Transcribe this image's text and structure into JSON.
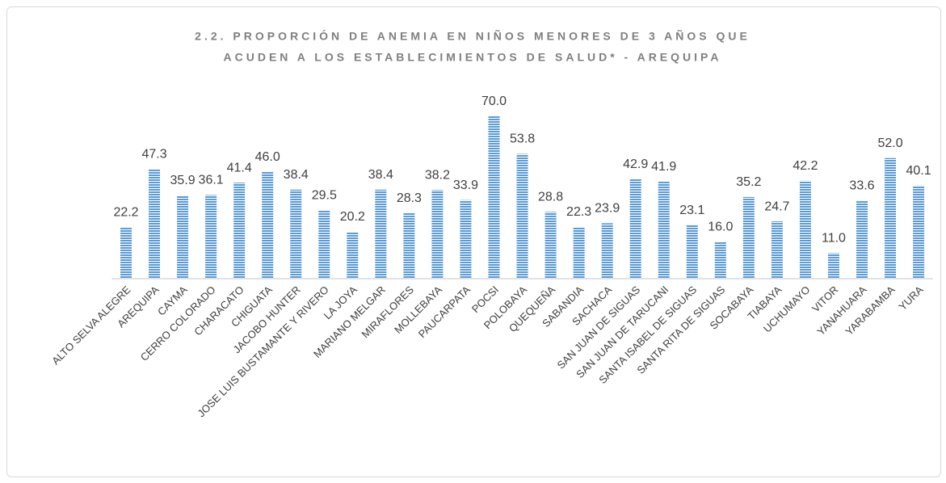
{
  "chart_data": {
    "type": "bar",
    "title": [
      "2.2.  PROPORCIÓN DE ANEMIA EN NIÑOS MENORES DE 3 AÑOS QUE",
      "ACUDEN A LOS ESTABLECIMIENTOS DE SALUD* - AREQUIPA"
    ],
    "categories": [
      "ALTO SELVA ALEGRE",
      "AREQUIPA",
      "CAYMA",
      "CERRO COLORADO",
      "CHARACATO",
      "CHIGUATA",
      "JACOBO HUNTER",
      "JOSE LUIS BUSTAMANTE Y RIVERO",
      "LA JOYA",
      "MARIANO MELGAR",
      "MIRAFLORES",
      "MOLLEBAYA",
      "PAUCARPATA",
      "POCSI",
      "POLOBAYA",
      "QUEQUEÑA",
      "SABANDIA",
      "SACHACA",
      "SAN JUAN DE SIGUAS",
      "SAN JUAN DE TARUCANI",
      "SANTA ISABEL DE SIGUAS",
      "SANTA RITA DE SIGUAS",
      "SOCABAYA",
      "TIABAYA",
      "UCHUMAYO",
      "VITOR",
      "YANAHUARA",
      "YARABAMBA",
      "YURA"
    ],
    "values": [
      22.2,
      47.3,
      35.9,
      36.1,
      41.4,
      46.0,
      38.4,
      29.5,
      20.2,
      38.4,
      28.3,
      38.2,
      33.9,
      70.0,
      53.8,
      28.8,
      22.3,
      23.9,
      42.9,
      41.9,
      23.1,
      16.0,
      35.2,
      24.7,
      42.2,
      11.0,
      33.6,
      52.0,
      40.1
    ],
    "value_labels": [
      "22.2",
      "47.3",
      "35.9",
      "36.1",
      "41.4",
      "46.0",
      "38.4",
      "29.5",
      "20.2",
      "38.4",
      "28.3",
      "38.2",
      "33.9",
      "70.0",
      "53.8",
      "28.8",
      "22.3",
      "23.9",
      "42.9",
      "41.9",
      "23.1",
      "16.0",
      "35.2",
      "24.7",
      "42.2",
      "11.0",
      "33.6",
      "52.0",
      "40.1"
    ],
    "color": "#5b9bd5",
    "ylim": [
      0,
      70
    ]
  }
}
